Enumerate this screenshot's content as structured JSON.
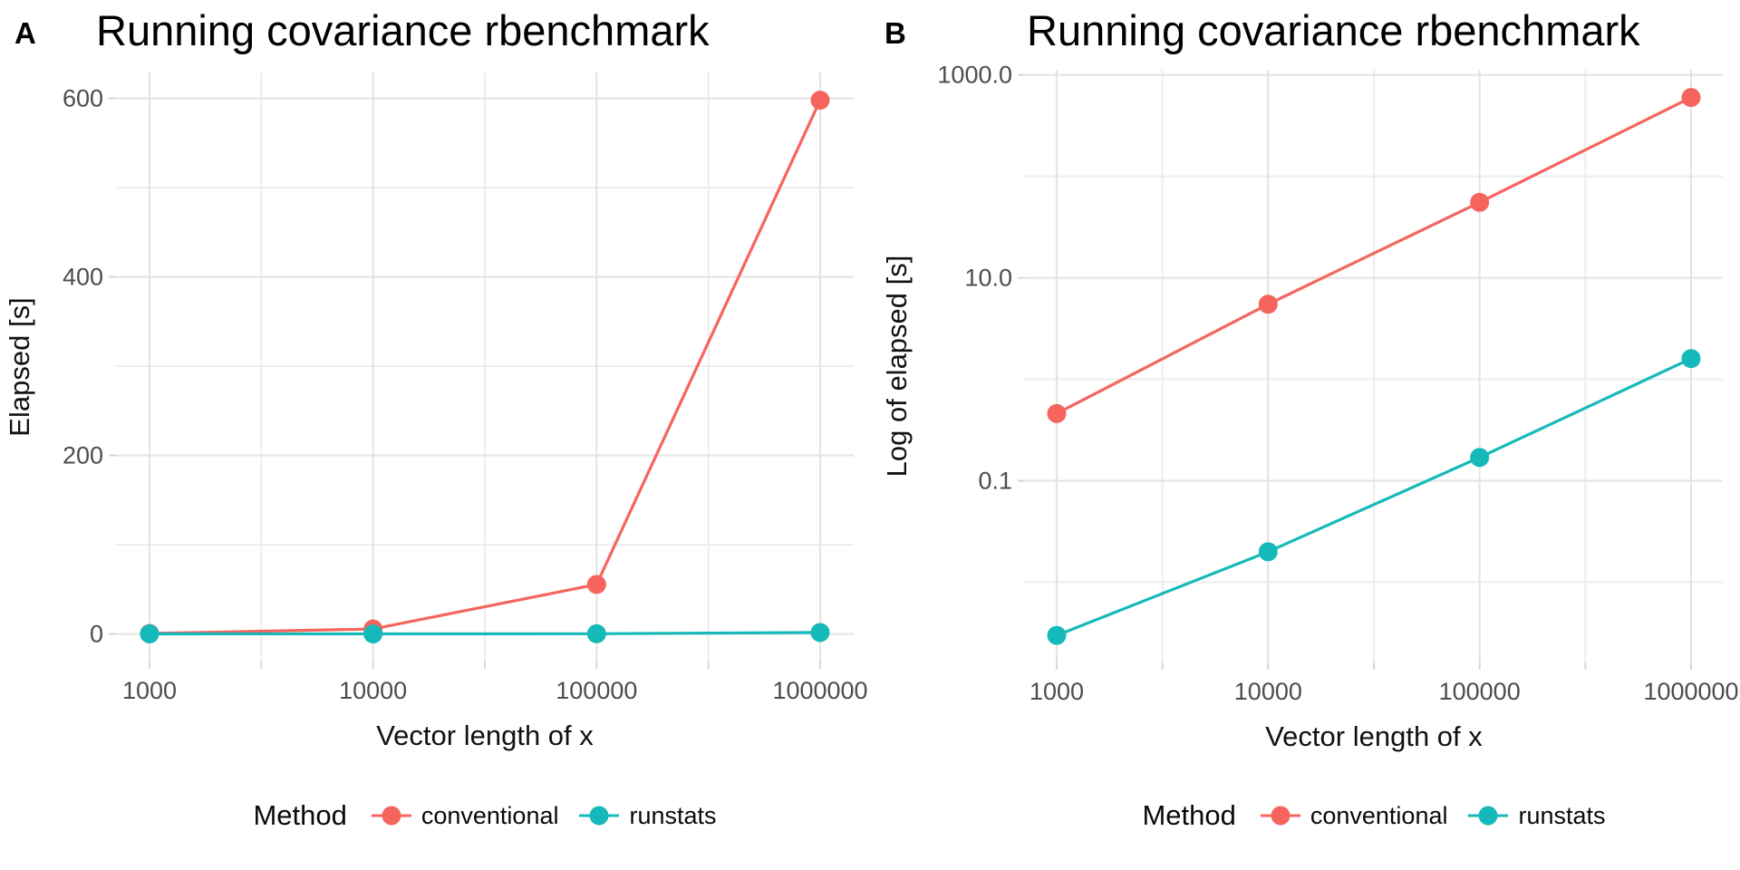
{
  "legend": {
    "title": "Method",
    "items": [
      {
        "label": "conventional",
        "color": "#F5655E"
      },
      {
        "label": "runstats",
        "color": "#16B9BA"
      }
    ]
  },
  "colors": {
    "conventional": "#F5655E",
    "runstats": "#16B9BA",
    "grid_major": "#E3E3E3",
    "grid_minor": "#EDEDED",
    "tick": "#D6D6D6",
    "tick_label": "#4D4D4D",
    "axis_title": "#111111",
    "title": "#000000"
  },
  "chart_data": [
    {
      "panel_tag": "A",
      "type": "line",
      "title": "Running covariance rbenchmark",
      "xlabel": "Vector length of x",
      "ylabel": "Elapsed [s]",
      "x_scale": "log10",
      "y_scale": "linear",
      "x": [
        1000,
        10000,
        100000,
        1000000
      ],
      "x_tick_labels": [
        "1000",
        "10000",
        "100000",
        "1000000"
      ],
      "y_major": [
        0,
        200,
        400,
        600
      ],
      "y_major_labels": [
        "0",
        "200",
        "400",
        "600"
      ],
      "y_minor": [
        100,
        300,
        500
      ],
      "ylim": [
        -31,
        629
      ],
      "grid": true,
      "legend_position": "bottom",
      "series": [
        {
          "name": "conventional",
          "color": "#F5655E",
          "values": [
            0.46,
            5.5,
            55.4,
            598
          ]
        },
        {
          "name": "runstats",
          "color": "#16B9BA",
          "values": [
            0.003,
            0.02,
            0.17,
            1.6
          ]
        }
      ]
    },
    {
      "panel_tag": "B",
      "type": "line",
      "title": "Running covariance rbenchmark",
      "xlabel": "Vector length of x",
      "ylabel": "Log of elapsed [s]",
      "x_scale": "log10",
      "y_scale": "log10",
      "x": [
        1000,
        10000,
        100000,
        1000000
      ],
      "x_tick_labels": [
        "1000",
        "10000",
        "100000",
        "1000000"
      ],
      "y_major": [
        1000,
        10,
        0.1
      ],
      "y_major_labels": [
        "1000.0",
        "10.0",
        "0.1"
      ],
      "y_minor": [
        100,
        1,
        0.01
      ],
      "ylim_log10": [
        -2.79,
        3.05
      ],
      "grid": true,
      "legend_position": "bottom",
      "series": [
        {
          "name": "conventional",
          "color": "#F5655E",
          "values": [
            0.46,
            5.5,
            55.4,
            598
          ]
        },
        {
          "name": "runstats",
          "color": "#16B9BA",
          "values": [
            0.003,
            0.02,
            0.17,
            1.6
          ]
        }
      ]
    }
  ]
}
